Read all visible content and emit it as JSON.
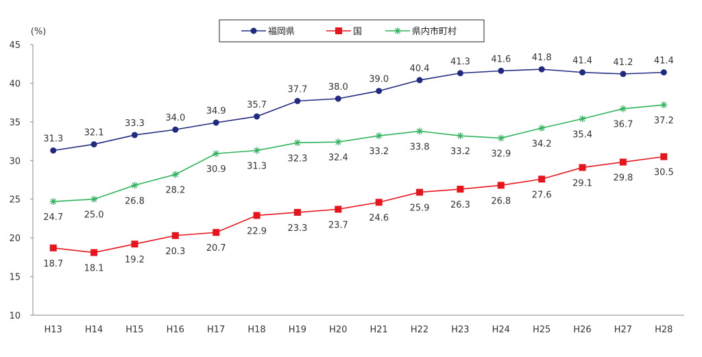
{
  "chart_data": {
    "type": "line",
    "ylabel": "(%)",
    "ylim": [
      10,
      45
    ],
    "yticks": [
      "45",
      "40",
      "35",
      "30",
      "25",
      "20",
      "15",
      "10"
    ],
    "categories": [
      "H13",
      "H14",
      "H15",
      "H16",
      "H17",
      "H18",
      "H19",
      "H20",
      "H21",
      "H22",
      "H23",
      "H24",
      "H25",
      "H26",
      "H27",
      "H28"
    ],
    "legend_position": "top-center",
    "series": [
      {
        "name": "福岡県",
        "color": "#1f2a80",
        "marker": "circle",
        "values": [
          31.3,
          32.1,
          33.3,
          34.0,
          34.9,
          35.7,
          37.7,
          38.0,
          39.0,
          40.4,
          41.3,
          41.6,
          41.8,
          41.4,
          41.2,
          41.4
        ],
        "labels": [
          "31.3",
          "32.1",
          "33.3",
          "34.0",
          "34.9",
          "35.7",
          "37.7",
          "38.0",
          "39.0",
          "40.4",
          "41.3",
          "41.6",
          "41.8",
          "41.4",
          "41.2",
          "41.4"
        ],
        "label_side": [
          "above",
          "above",
          "above",
          "above",
          "above",
          "above",
          "above",
          "above",
          "above",
          "above",
          "above",
          "above",
          "above",
          "above",
          "above",
          "above"
        ]
      },
      {
        "name": "国",
        "color": "#e8141c",
        "marker": "square",
        "values": [
          18.7,
          18.1,
          19.2,
          20.3,
          20.7,
          22.9,
          23.3,
          23.7,
          24.6,
          25.9,
          26.3,
          26.8,
          27.6,
          29.1,
          29.8,
          30.5
        ],
        "labels": [
          "18.7",
          "18.1",
          "19.2",
          "20.3",
          "20.7",
          "22.9",
          "23.3",
          "23.7",
          "24.6",
          "25.9",
          "26.3",
          "26.8",
          "27.6",
          "29.1",
          "29.8",
          "30.5"
        ],
        "label_side": [
          "below",
          "below",
          "below",
          "below",
          "below",
          "below",
          "below",
          "below",
          "below",
          "below",
          "below",
          "below",
          "below",
          "below",
          "below",
          "below"
        ]
      },
      {
        "name": "県内市町村",
        "color": "#2db35a",
        "marker": "asterisk",
        "values": [
          24.7,
          25.0,
          26.8,
          28.2,
          30.9,
          31.3,
          32.3,
          32.4,
          33.2,
          33.8,
          33.2,
          32.9,
          34.2,
          35.4,
          36.7,
          37.2
        ],
        "labels": [
          "24.7",
          "25.0",
          "26.8",
          "28.2",
          "30.9",
          "31.3",
          "32.3",
          "32.4",
          "33.2",
          "33.8",
          "33.2",
          "32.9",
          "34.2",
          "35.4",
          "36.7",
          "37.2"
        ],
        "label_side": [
          "below",
          "below",
          "below",
          "below",
          "below",
          "below",
          "below",
          "below",
          "below",
          "below",
          "below",
          "below",
          "below",
          "below",
          "below",
          "below"
        ]
      }
    ]
  }
}
